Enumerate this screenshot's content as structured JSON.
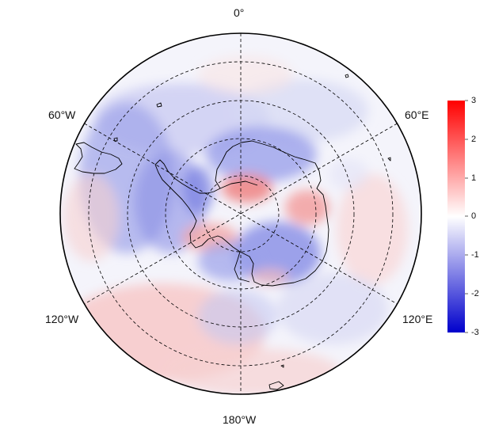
{
  "map": {
    "projection": "south-polar-stereographic",
    "longitude_labels": {
      "top": "0°",
      "upper_left": "60°W",
      "upper_right": "60°E",
      "lower_left": "120°W",
      "lower_right": "120°E",
      "bottom": "180°W"
    },
    "graticule": {
      "latitude_circles": 4,
      "meridian_spacing_deg": 60,
      "style": "dashed"
    }
  },
  "colorbar": {
    "min": -3,
    "max": 3,
    "ticks": [
      "3",
      "2",
      "1",
      "0",
      "-1",
      "-2",
      "-3"
    ],
    "colormap": [
      "#0000cc",
      "#ffffff",
      "#ff0000"
    ]
  },
  "colors": {
    "positive": "#ff0000",
    "negative": "#0000dd",
    "neutral": "#ffffff",
    "outline": "#000000"
  }
}
